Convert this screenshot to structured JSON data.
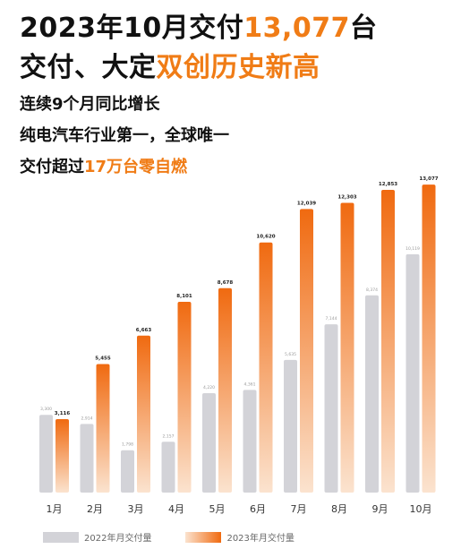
{
  "headline": {
    "line1_prefix": "2023年10月交付",
    "line1_highlight": "13,077",
    "line1_suffix": "台",
    "line2_prefix": "交付、大定",
    "line2_highlight": "双创历史新高"
  },
  "subpoints": {
    "line1": "连续9个月同比增长",
    "line2": "纯电汽车行业第一，全球唯一",
    "line3_prefix": "交付超过",
    "line3_highlight": "17万台零自燃"
  },
  "colors": {
    "accent": "#f07c16",
    "bar_2022": "#d3d3d8",
    "bar_2023_top": "#f06a10",
    "bar_2023_bottom": "#fbe3cf"
  },
  "chart_data": {
    "type": "bar",
    "categories": [
      "1月",
      "2月",
      "3月",
      "4月",
      "5月",
      "6月",
      "7月",
      "8月",
      "9月",
      "10月"
    ],
    "series": [
      {
        "name": "2022年月交付量",
        "values": [
          3300,
          2914,
          1798,
          2157,
          4220,
          4361,
          5635,
          7144,
          8374,
          10119
        ]
      },
      {
        "name": "2023年月交付量",
        "values": [
          3116,
          5455,
          6663,
          8101,
          8678,
          10620,
          12039,
          12303,
          12853,
          13077
        ]
      }
    ],
    "labels_2022": [
      "3,300",
      "2,914",
      "1,798",
      "2,157",
      "4,220",
      "4,361",
      "5,635",
      "7,144",
      "8,374",
      "10,119"
    ],
    "labels_2023": [
      "3,116",
      "5,455",
      "6,663",
      "8,101",
      "8,678",
      "10,620",
      "12,039",
      "12,303",
      "12,853",
      "13,077"
    ],
    "ylim": [
      0,
      13500
    ],
    "grid": false,
    "legend": "bottom"
  }
}
